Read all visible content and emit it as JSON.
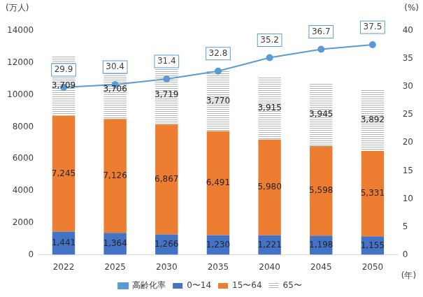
{
  "chart_data": {
    "type": "bar",
    "categories": [
      "2022",
      "2025",
      "2030",
      "2035",
      "2040",
      "2045",
      "2050"
    ],
    "y_label": "(万人)",
    "y2_label": "(%)",
    "x_label": "(年)",
    "stacked": true,
    "data_labels": true,
    "legend": "bottom",
    "grid": false,
    "ylim": [
      0,
      14000
    ],
    "yticks": [
      0,
      2000,
      4000,
      6000,
      8000,
      10000,
      12000,
      14000
    ],
    "y2lim": [
      0,
      40
    ],
    "y2ticks": [
      0,
      5,
      10,
      15,
      20,
      25,
      30,
      35,
      40
    ],
    "series": [
      {
        "name": "0〜14",
        "color": "#4472c4",
        "values": [
          1441,
          1364,
          1266,
          1230,
          1221,
          1198,
          1155
        ],
        "value_labels": [
          "1,441",
          "1,364",
          "1,266",
          "1,230",
          "1,221",
          "1,198",
          "1,155"
        ]
      },
      {
        "name": "15〜64",
        "color": "#ed7d31",
        "values": [
          7245,
          7126,
          6867,
          6491,
          5980,
          5598,
          5331
        ],
        "value_labels": [
          "7,245",
          "7,126",
          "6,867",
          "6,491",
          "5,980",
          "5,598",
          "5,331"
        ]
      },
      {
        "name": "65〜",
        "color": "#b4b4b4",
        "values": [
          3709,
          3706,
          3719,
          3770,
          3915,
          3945,
          3892
        ],
        "value_labels": [
          "3,709",
          "3,706",
          "3,719",
          "3,770",
          "3,915",
          "3,945",
          "3,892"
        ]
      },
      {
        "name": "高齢化率",
        "type": "line",
        "axis": "y2",
        "color": "#5b9bd5",
        "marker": "circle",
        "values": [
          29.9,
          30.4,
          31.4,
          32.8,
          35.2,
          36.7,
          37.5
        ]
      }
    ]
  }
}
